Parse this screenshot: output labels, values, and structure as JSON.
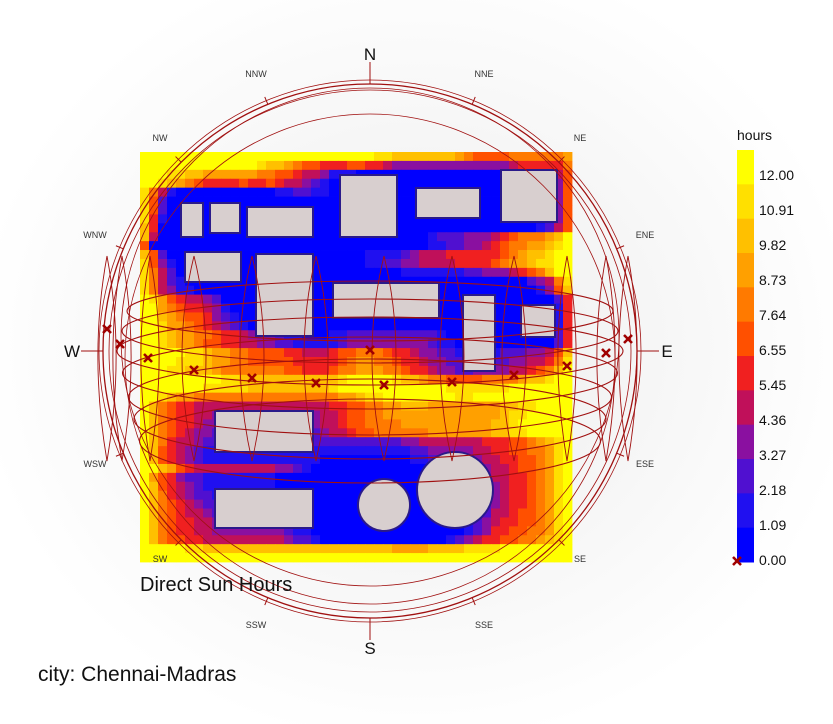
{
  "chart_data": {
    "type": "heatmap",
    "title": "Direct Sun Hours",
    "location_label": "city: Chennai-Madras",
    "legend": {
      "title": "hours",
      "ticks": [
        "12.00",
        "10.91",
        "9.82",
        "8.73",
        "7.64",
        "6.55",
        "5.45",
        "4.36",
        "3.27",
        "2.18",
        "1.09",
        "0.00"
      ],
      "colors": [
        "#ffff00",
        "#ffe000",
        "#ffc000",
        "#ffa000",
        "#ff7a00",
        "#ff5000",
        "#f02020",
        "#c0105a",
        "#8a10a0",
        "#5010d0",
        "#2010f0",
        "#0000ff"
      ],
      "min": 0.0,
      "max": 12.0,
      "marker": "sun position (x)"
    },
    "compass": {
      "major": [
        "N",
        "E",
        "S",
        "W"
      ],
      "minor": [
        "NNE",
        "NE",
        "ENE",
        "ESE",
        "SE",
        "SSE",
        "SSW",
        "SW",
        "WSW",
        "WNW",
        "NW",
        "NNW"
      ]
    },
    "colors": {
      "sunpath": "#a01010",
      "building": "#d8cfcf",
      "building_edge": "#2a1a8a"
    },
    "scale_range": [
      0,
      12
    ]
  }
}
